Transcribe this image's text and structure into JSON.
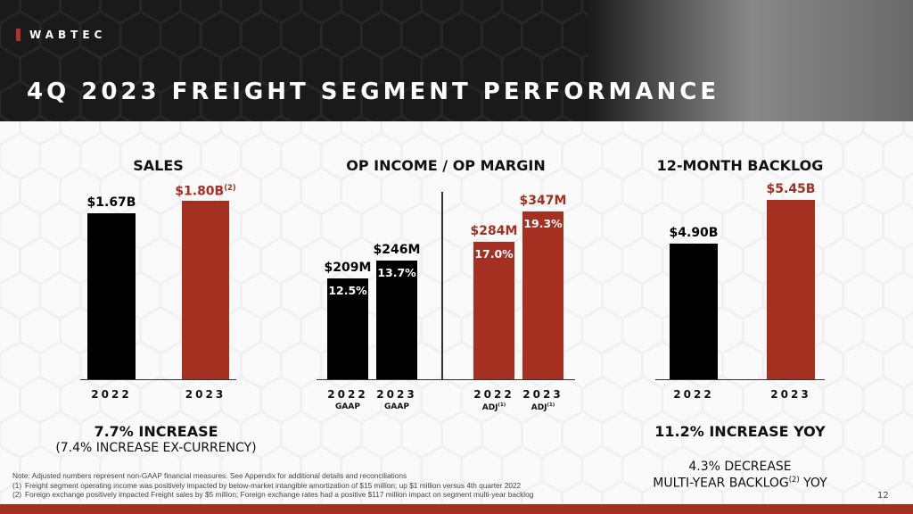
{
  "header": {
    "logo": "WABTEC",
    "title": "4Q 2023 FREIGHT SEGMENT PERFORMANCE"
  },
  "colors": {
    "red": "#a53022",
    "black": "#000000"
  },
  "chart_data": [
    {
      "type": "bar",
      "title": "SALES",
      "categories": [
        "2022",
        "2023"
      ],
      "values": [
        1.67,
        1.8
      ],
      "labels": [
        "$1.67B",
        "$1.80B"
      ],
      "label_sup": [
        "",
        "(2)"
      ],
      "colors": [
        "#000000",
        "#a53022"
      ],
      "ylim": [
        0,
        1.8
      ],
      "summary": "7.7% INCREASE",
      "summary_sub": "(7.4% INCREASE EX-CURRENCY)"
    },
    {
      "type": "bar",
      "title": "OP INCOME / OP MARGIN",
      "categories": [
        "2022",
        "2023",
        "2022",
        "2023"
      ],
      "sublabels": [
        "GAAP",
        "GAAP",
        "ADJ",
        "ADJ"
      ],
      "sublabel_sup": [
        "",
        "",
        "(1)",
        "(1)"
      ],
      "values": [
        209,
        246,
        284,
        347
      ],
      "labels": [
        "$209M",
        "$246M",
        "$284M",
        "$347M"
      ],
      "margins": [
        "12.5%",
        "13.7%",
        "17.0%",
        "19.3%"
      ],
      "colors": [
        "#000000",
        "#000000",
        "#a53022",
        "#a53022"
      ],
      "ylim": [
        0,
        347
      ]
    },
    {
      "type": "bar",
      "title": "12-MONTH BACKLOG",
      "categories": [
        "2022",
        "2023"
      ],
      "values": [
        4.9,
        5.45
      ],
      "labels": [
        "$4.90B",
        "$5.45B"
      ],
      "colors": [
        "#000000",
        "#a53022"
      ],
      "ylim": [
        3.19,
        5.45
      ],
      "summary": "11.2% INCREASE YOY",
      "summary_sub1": "4.3% DECREASE",
      "summary_sub2a": "MULTI-YEAR BACKLOG",
      "summary_sup": "(2)",
      "summary_sub2b": " YOY"
    }
  ],
  "notes": {
    "note": "Note: Adjusted numbers represent non-GAAP financial measures. See Appendix for additional details and reconciliations",
    "n1_idx": "(1)",
    "n1": "Freight segment operating income was positively impacted by below-market intangible amortization of $15 million; up $1 million versus 4th quarter 2022",
    "n2_idx": "(2)",
    "n2": "Foreign exchange positively impacted Freight sales by $5 million; Foreign exchange rates had a positive $117 million impact on segment multi-year backlog"
  },
  "page": "12"
}
